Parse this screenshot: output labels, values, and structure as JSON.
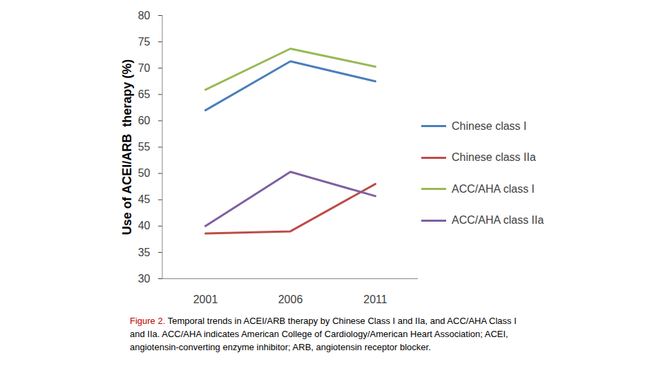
{
  "chart_data": {
    "type": "line",
    "y_label": "Use of ACEI/ARB  therapy (%)",
    "categories": [
      "2001",
      "2006",
      "2011"
    ],
    "series": [
      {
        "name": "Chinese class I",
        "color": "#4a7ebb",
        "values": [
          62.0,
          71.3,
          67.5
        ]
      },
      {
        "name": "Chinese class IIa",
        "color": "#be4b48",
        "values": [
          38.6,
          39.0,
          48.0
        ]
      },
      {
        "name": "ACC/AHA class I",
        "color": "#98b954",
        "values": [
          65.9,
          73.7,
          70.3
        ]
      },
      {
        "name": "ACC/AHA class IIa",
        "color": "#7d5fa0",
        "values": [
          40.0,
          50.3,
          45.7
        ]
      }
    ],
    "ylim": [
      30,
      80
    ],
    "yticks": [
      30,
      35,
      40,
      45,
      50,
      55,
      60,
      65,
      70,
      75,
      80
    ],
    "grid": false,
    "legend": "right",
    "caption_label": "Figure 2.",
    "caption": "Temporal trends in ACEI/ARB therapy by Chinese Class I and IIa, and ACC/AHA Class I and IIa. ACC/AHA indicates American College of Cardiology/American Heart Association; ACEI, angiotensin-converting enzyme inhibitor; ARB, angiotensin receptor blocker."
  }
}
